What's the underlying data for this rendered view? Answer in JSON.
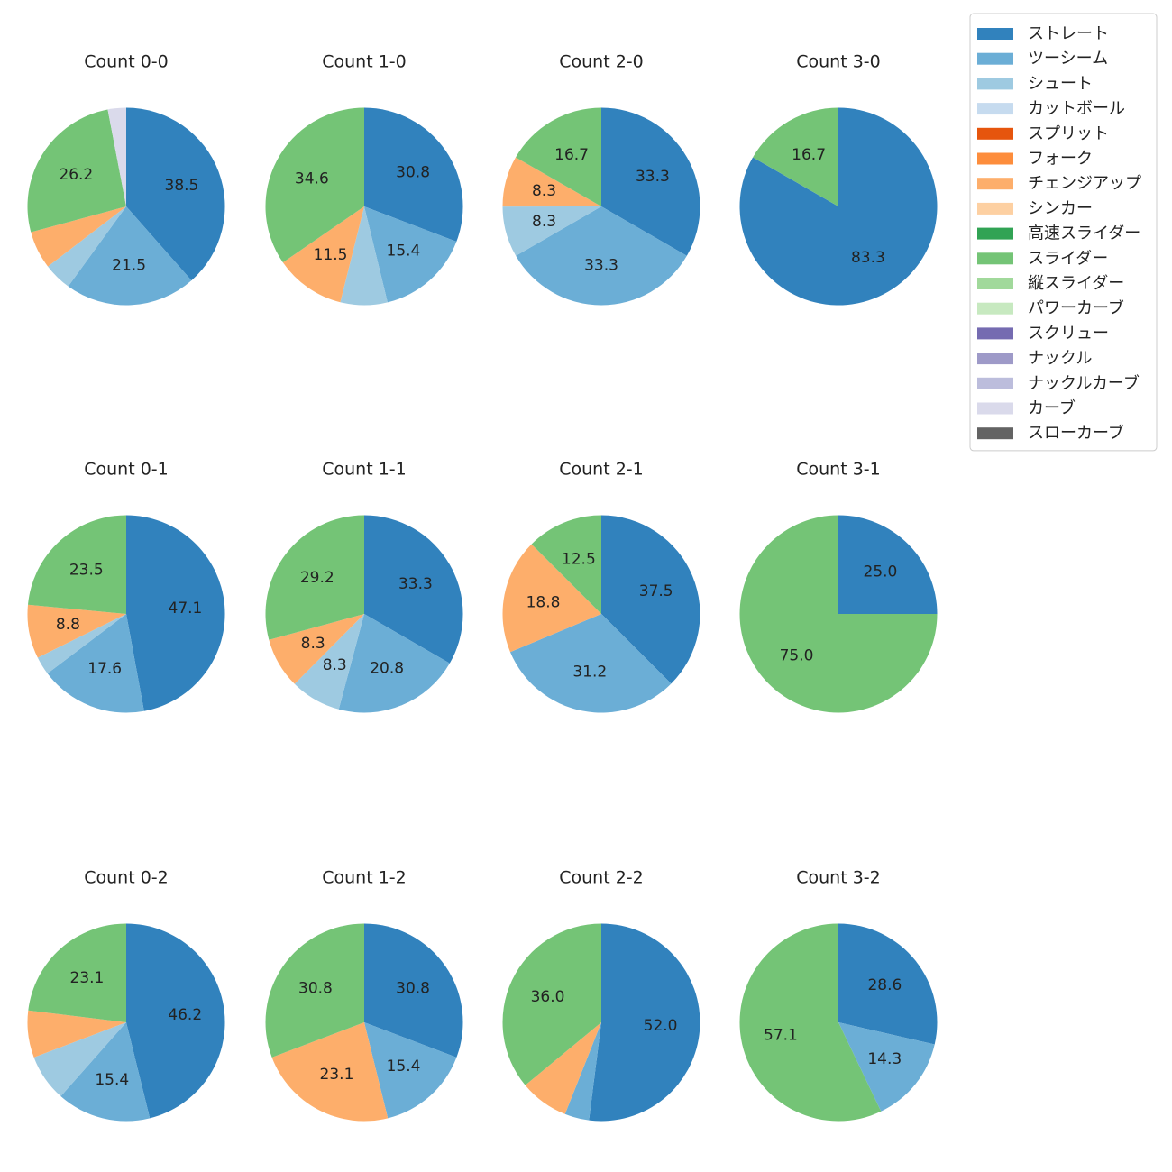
{
  "chart_data": {
    "type": "pie",
    "legend": {
      "placement": "top-right",
      "entries": [
        {
          "name": "ストレート",
          "color": "#3182bd"
        },
        {
          "name": "ツーシーム",
          "color": "#6baed6"
        },
        {
          "name": "シュート",
          "color": "#9ecae1"
        },
        {
          "name": "カットボール",
          "color": "#c6dbef"
        },
        {
          "name": "スプリット",
          "color": "#e6550d"
        },
        {
          "name": "フォーク",
          "color": "#fd8d3c"
        },
        {
          "name": "チェンジアップ",
          "color": "#fdae6b"
        },
        {
          "name": "シンカー",
          "color": "#fdd0a2"
        },
        {
          "name": "高速スライダー",
          "color": "#31a354"
        },
        {
          "name": "スライダー",
          "color": "#74c476"
        },
        {
          "name": "縦スライダー",
          "color": "#a1d99b"
        },
        {
          "name": "パワーカーブ",
          "color": "#c7e9c0"
        },
        {
          "name": "スクリュー",
          "color": "#756bb1"
        },
        {
          "name": "ナックル",
          "color": "#9e9ac8"
        },
        {
          "name": "ナックルカーブ",
          "color": "#bcbddc"
        },
        {
          "name": "カーブ",
          "color": "#dadaeb"
        },
        {
          "name": "スローカーブ",
          "color": "#636363"
        }
      ]
    },
    "pies": [
      {
        "title": "Count 0-0",
        "slices": [
          {
            "pitch": "ストレート",
            "value": 38.5,
            "label": "38.5"
          },
          {
            "pitch": "ツーシーム",
            "value": 21.5,
            "label": "21.5"
          },
          {
            "pitch": "シュート",
            "value": 4.6,
            "label": ""
          },
          {
            "pitch": "チェンジアップ",
            "value": 6.2,
            "label": ""
          },
          {
            "pitch": "スライダー",
            "value": 26.2,
            "label": "26.2"
          },
          {
            "pitch": "カーブ",
            "value": 3.0,
            "label": ""
          }
        ]
      },
      {
        "title": "Count 1-0",
        "slices": [
          {
            "pitch": "ストレート",
            "value": 30.8,
            "label": "30.8"
          },
          {
            "pitch": "ツーシーム",
            "value": 15.4,
            "label": "15.4"
          },
          {
            "pitch": "シュート",
            "value": 7.7,
            "label": ""
          },
          {
            "pitch": "チェンジアップ",
            "value": 11.5,
            "label": "11.5"
          },
          {
            "pitch": "スライダー",
            "value": 34.6,
            "label": "34.6"
          }
        ]
      },
      {
        "title": "Count 2-0",
        "slices": [
          {
            "pitch": "ストレート",
            "value": 33.3,
            "label": "33.3"
          },
          {
            "pitch": "ツーシーム",
            "value": 33.3,
            "label": "33.3"
          },
          {
            "pitch": "シュート",
            "value": 8.3,
            "label": "8.3"
          },
          {
            "pitch": "チェンジアップ",
            "value": 8.3,
            "label": "8.3"
          },
          {
            "pitch": "スライダー",
            "value": 16.7,
            "label": "16.7"
          }
        ]
      },
      {
        "title": "Count 3-0",
        "slices": [
          {
            "pitch": "ストレート",
            "value": 83.3,
            "label": "83.3"
          },
          {
            "pitch": "スライダー",
            "value": 16.7,
            "label": "16.7"
          }
        ]
      },
      {
        "title": "Count 0-1",
        "slices": [
          {
            "pitch": "ストレート",
            "value": 47.1,
            "label": "47.1"
          },
          {
            "pitch": "ツーシーム",
            "value": 17.6,
            "label": "17.6"
          },
          {
            "pitch": "シュート",
            "value": 3.0,
            "label": ""
          },
          {
            "pitch": "チェンジアップ",
            "value": 8.8,
            "label": "8.8"
          },
          {
            "pitch": "スライダー",
            "value": 23.5,
            "label": "23.5"
          }
        ]
      },
      {
        "title": "Count 1-1",
        "slices": [
          {
            "pitch": "ストレート",
            "value": 33.3,
            "label": "33.3"
          },
          {
            "pitch": "ツーシーム",
            "value": 20.8,
            "label": "20.8"
          },
          {
            "pitch": "シュート",
            "value": 8.3,
            "label": "8.3"
          },
          {
            "pitch": "チェンジアップ",
            "value": 8.3,
            "label": "8.3"
          },
          {
            "pitch": "スライダー",
            "value": 29.2,
            "label": "29.2"
          }
        ]
      },
      {
        "title": "Count 2-1",
        "slices": [
          {
            "pitch": "ストレート",
            "value": 37.5,
            "label": "37.5"
          },
          {
            "pitch": "ツーシーム",
            "value": 31.2,
            "label": "31.2"
          },
          {
            "pitch": "チェンジアップ",
            "value": 18.8,
            "label": "18.8"
          },
          {
            "pitch": "スライダー",
            "value": 12.5,
            "label": "12.5"
          }
        ]
      },
      {
        "title": "Count 3-1",
        "slices": [
          {
            "pitch": "ストレート",
            "value": 25.0,
            "label": "25.0"
          },
          {
            "pitch": "スライダー",
            "value": 75.0,
            "label": "75.0"
          }
        ]
      },
      {
        "title": "Count 0-2",
        "slices": [
          {
            "pitch": "ストレート",
            "value": 46.2,
            "label": "46.2"
          },
          {
            "pitch": "ツーシーム",
            "value": 15.4,
            "label": "15.4"
          },
          {
            "pitch": "シュート",
            "value": 7.7,
            "label": ""
          },
          {
            "pitch": "チェンジアップ",
            "value": 7.7,
            "label": ""
          },
          {
            "pitch": "スライダー",
            "value": 23.1,
            "label": "23.1"
          }
        ]
      },
      {
        "title": "Count 1-2",
        "slices": [
          {
            "pitch": "ストレート",
            "value": 30.8,
            "label": "30.8"
          },
          {
            "pitch": "ツーシーム",
            "value": 15.4,
            "label": "15.4"
          },
          {
            "pitch": "チェンジアップ",
            "value": 23.1,
            "label": "23.1"
          },
          {
            "pitch": "スライダー",
            "value": 30.8,
            "label": "30.8"
          }
        ]
      },
      {
        "title": "Count 2-2",
        "slices": [
          {
            "pitch": "ストレート",
            "value": 52.0,
            "label": "52.0"
          },
          {
            "pitch": "ツーシーム",
            "value": 4.0,
            "label": ""
          },
          {
            "pitch": "チェンジアップ",
            "value": 8.0,
            "label": ""
          },
          {
            "pitch": "スライダー",
            "value": 36.0,
            "label": "36.0"
          }
        ]
      },
      {
        "title": "Count 3-2",
        "slices": [
          {
            "pitch": "ストレート",
            "value": 28.6,
            "label": "28.6"
          },
          {
            "pitch": "ツーシーム",
            "value": 14.3,
            "label": "14.3"
          },
          {
            "pitch": "スライダー",
            "value": 57.1,
            "label": "57.1"
          }
        ]
      }
    ]
  }
}
